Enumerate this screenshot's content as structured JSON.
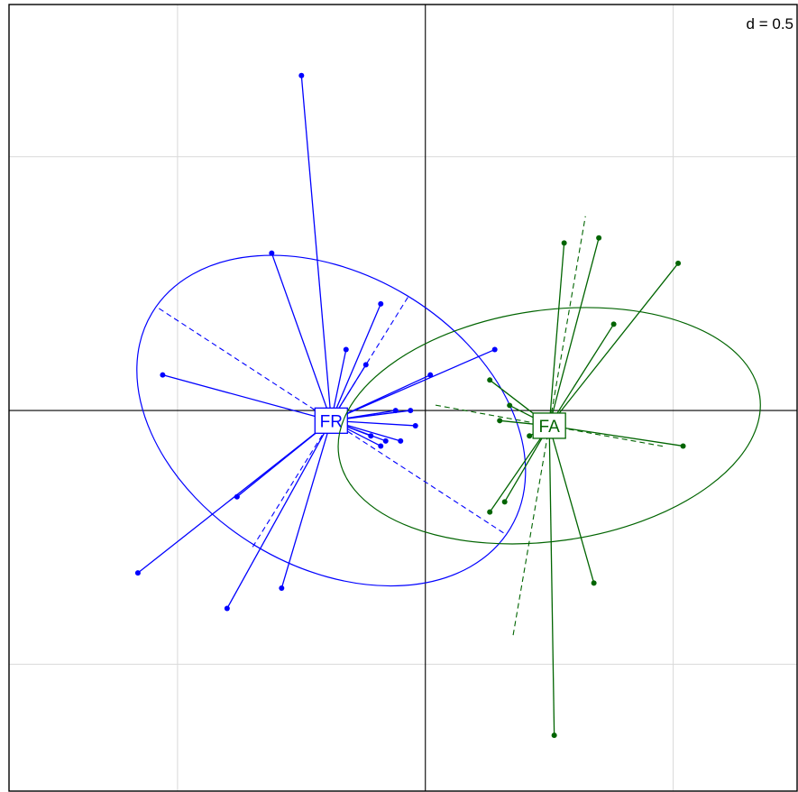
{
  "chart_data": {
    "type": "scatter",
    "title": "",
    "xlabel": "",
    "ylabel": "",
    "scale_label": "d = 0.5",
    "xlim": [
      -0.84,
      0.75
    ],
    "ylim": [
      -0.75,
      0.8
    ],
    "grid": true,
    "grid_step": 0.5,
    "series": [
      {
        "name": "FR",
        "color": "#0000ff",
        "centroid": [
          -0.19,
          -0.02
        ],
        "ellipse": {
          "cx": -0.19,
          "cy": -0.02,
          "semi_axis1": 0.295,
          "semi_axis2": 0.412,
          "rotation_deg": -59,
          "axis1_dir": [
            0.537,
            0.844
          ],
          "axis2_dir": [
            -0.844,
            0.537
          ]
        },
        "points": [
          [
            -0.25,
            0.66
          ],
          [
            -0.31,
            0.31
          ],
          [
            -0.09,
            0.21
          ],
          [
            -0.16,
            0.12
          ],
          [
            -0.12,
            0.09
          ],
          [
            -0.53,
            0.07
          ],
          [
            0.01,
            0.07
          ],
          [
            0.14,
            0.12
          ],
          [
            -0.03,
            0.0
          ],
          [
            -0.06,
            -0.0
          ],
          [
            -0.02,
            -0.03
          ],
          [
            -0.11,
            -0.05
          ],
          [
            -0.08,
            -0.06
          ],
          [
            -0.05,
            -0.06
          ],
          [
            -0.09,
            -0.07
          ],
          [
            -0.38,
            -0.17
          ],
          [
            -0.58,
            -0.32
          ],
          [
            -0.29,
            -0.35
          ],
          [
            -0.4,
            -0.39
          ]
        ]
      },
      {
        "name": "FA",
        "color": "#006400",
        "centroid": [
          0.25,
          -0.03
        ],
        "ellipse": {
          "cx": 0.25,
          "cy": -0.03,
          "semi_axis1": 0.233,
          "semi_axis2": 0.419,
          "rotation_deg": -98,
          "axis1_dir": [
            0.985,
            -0.174
          ],
          "axis2_dir": [
            0.174,
            0.985
          ]
        },
        "points": [
          [
            0.28,
            0.33
          ],
          [
            0.35,
            0.34
          ],
          [
            0.51,
            0.29
          ],
          [
            0.38,
            0.17
          ],
          [
            0.13,
            0.06
          ],
          [
            0.17,
            0.01
          ],
          [
            0.15,
            -0.02
          ],
          [
            0.21,
            -0.05
          ],
          [
            0.52,
            -0.07
          ],
          [
            0.16,
            -0.18
          ],
          [
            0.13,
            -0.2
          ],
          [
            0.34,
            -0.34
          ],
          [
            0.26,
            -0.64
          ]
        ]
      }
    ]
  }
}
